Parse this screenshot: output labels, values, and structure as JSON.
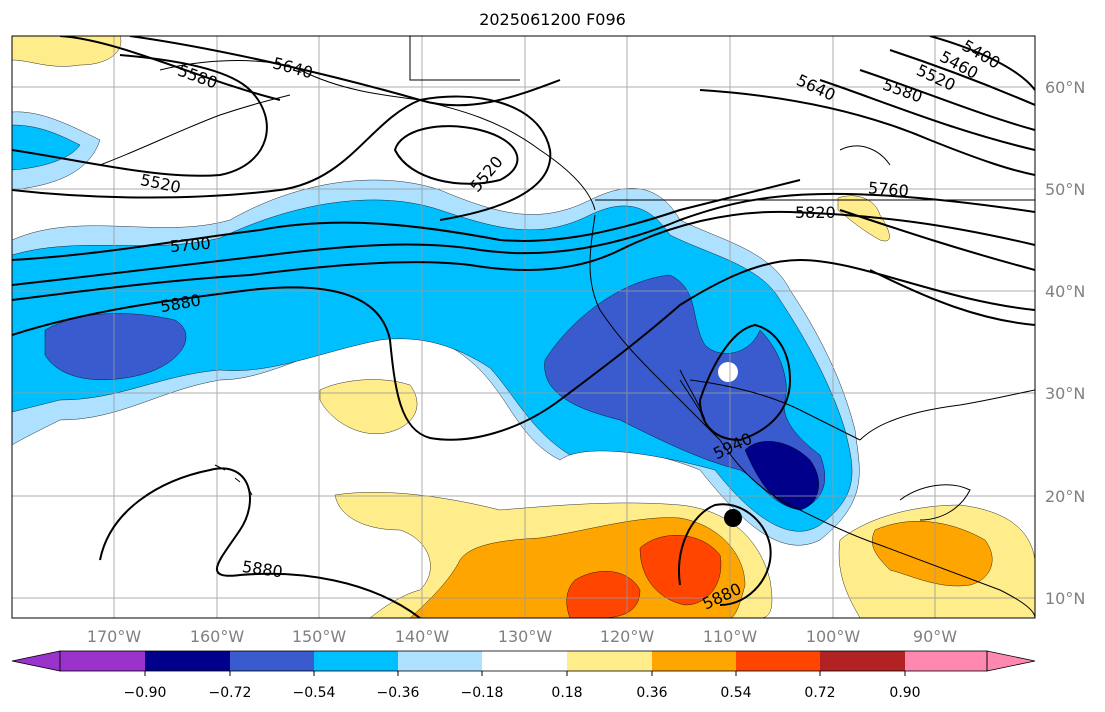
{
  "title": "2025061200 F096",
  "map": {
    "lat_labels": [
      "60°N",
      "50°N",
      "40°N",
      "30°N",
      "20°N",
      "10°N"
    ],
    "lon_labels": [
      "170°W",
      "160°W",
      "150°W",
      "140°W",
      "130°W",
      "120°W",
      "110°W",
      "100°W",
      "90°W"
    ],
    "contour_labels": [
      "5580",
      "5640",
      "5520",
      "5520",
      "5700",
      "5880",
      "5640",
      "5580",
      "5520",
      "5460",
      "5400",
      "5760",
      "5820",
      "5940",
      "5880",
      "5880"
    ],
    "colors": {
      "c_n090": "#9933cc",
      "c_n072": "#00008b",
      "c_n054": "#3a5bcd",
      "c_n036": "#00bfff",
      "c_n018": "#aee0ff",
      "c_p018": "#ffec8b",
      "c_p036": "#ffa500",
      "c_p054": "#ff4500",
      "c_p072": "#b22222",
      "c_p090": "#ff88b0"
    }
  },
  "colorbar": {
    "ticks": [
      "−0.90",
      "−0.72",
      "−0.54",
      "−0.36",
      "−0.18",
      "0.18",
      "0.36",
      "0.54",
      "0.72",
      "0.90"
    ],
    "colors": [
      "#9933cc",
      "#00008b",
      "#3a5bcd",
      "#00bfff",
      "#aee0ff",
      "#ffffff",
      "#ffec8b",
      "#ffa500",
      "#ff4500",
      "#b22222",
      "#ff88b0"
    ]
  }
}
